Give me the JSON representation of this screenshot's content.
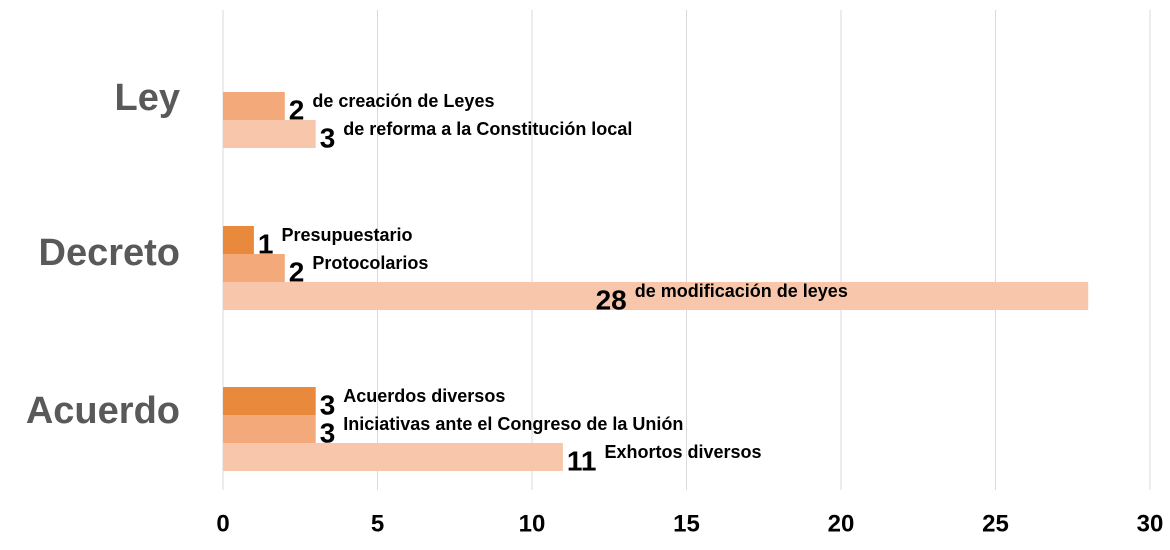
{
  "chart_data": {
    "type": "grouped-bar",
    "orientation": "horizontal",
    "groups": [
      {
        "name": "Ley",
        "bars": [
          {
            "value": 2,
            "label": "de creación de Leyes",
            "color": "#f4a97a"
          },
          {
            "value": 3,
            "label": "de reforma a la Constitución local",
            "color": "#f8c7ab"
          }
        ]
      },
      {
        "name": "Decreto",
        "bars": [
          {
            "value": 1,
            "label": "Presupuestario",
            "color": "#e8893c"
          },
          {
            "value": 2,
            "label": "Protocolarios",
            "color": "#f4a97a"
          },
          {
            "value": 28,
            "label": "de modificación de leyes",
            "color": "#f8c7ab"
          }
        ]
      },
      {
        "name": "Acuerdo",
        "bars": [
          {
            "value": 3,
            "label": "Acuerdos diversos",
            "color": "#e8893c"
          },
          {
            "value": 3,
            "label": "Iniciativas ante el Congreso de la Unión",
            "color": "#f4a97a"
          },
          {
            "value": 11,
            "label": "Exhortos diversos",
            "color": "#f8c7ab"
          }
        ]
      }
    ],
    "xlim": [
      0,
      30
    ],
    "xticks": [
      0,
      5,
      10,
      15,
      20,
      25,
      30
    ],
    "grid": true
  }
}
